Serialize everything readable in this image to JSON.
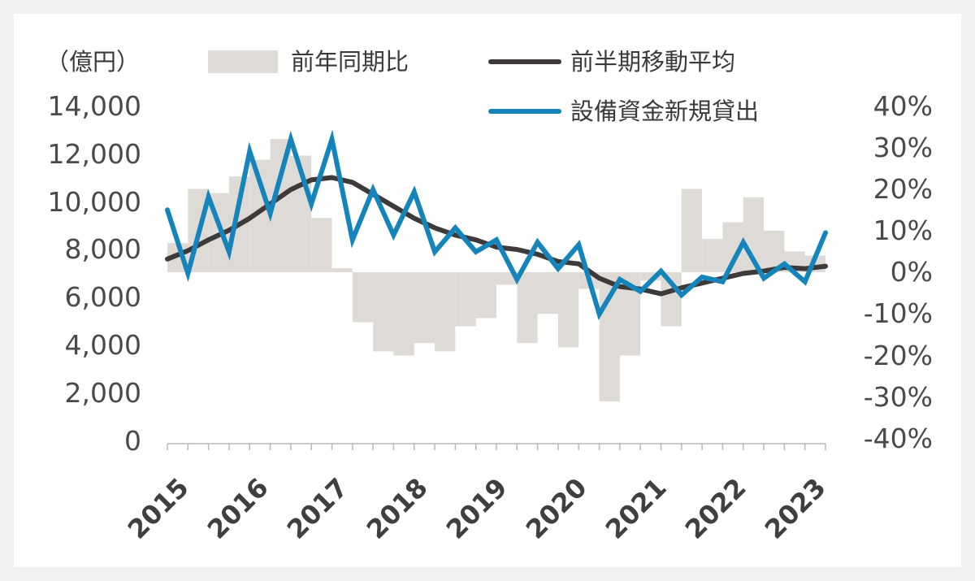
{
  "chart_data": {
    "type": "bar+line",
    "unit_label": "（億円）",
    "x_tick_labels": [
      "2015",
      "2016",
      "2017",
      "2018",
      "2019",
      "2020",
      "2021",
      "2022",
      "2023"
    ],
    "left_axis": {
      "ticks": [
        "14,000",
        "12,000",
        "10,000",
        "8,000",
        "6,000",
        "4,000",
        "2,000",
        "0"
      ],
      "ylim": [
        0,
        14000
      ]
    },
    "right_axis": {
      "ticks": [
        "40%",
        "30%",
        "20%",
        "10%",
        "0%",
        "-10%",
        "-20%",
        "-30%",
        "-40%"
      ],
      "ylim": [
        -40,
        40
      ]
    },
    "legend": {
      "yoy": "前年同期比",
      "moving_avg": "前半期移動平均",
      "loans": "設備資金新規貸出"
    },
    "x_index_range": [
      0,
      32
    ],
    "series": [
      {
        "name": "前年同期比",
        "type": "bar",
        "axis": "right",
        "color": "#dedbd6",
        "values": [
          7,
          20,
          19,
          23,
          27,
          32,
          28,
          13,
          1,
          -12,
          -19,
          -20,
          -17,
          -19,
          -13,
          -11,
          -3,
          -17,
          -10,
          -18,
          -4,
          -31,
          -20,
          -2,
          -13,
          20,
          8,
          12,
          18,
          10,
          5,
          4
        ]
      },
      {
        "name": "前半期移動平均",
        "type": "line",
        "axis": "left",
        "color": "#3d3a39",
        "values": [
          7600,
          7950,
          8400,
          8800,
          9300,
          9900,
          10500,
          10900,
          11000,
          10800,
          10300,
          9800,
          9300,
          8900,
          8600,
          8400,
          8100,
          8000,
          7800,
          7500,
          7400,
          6800,
          6450,
          6350,
          6150,
          6400,
          6600,
          6800,
          7000,
          7100,
          7250,
          7200,
          7300
        ]
      },
      {
        "name": "設備資金新規貸出",
        "type": "line",
        "axis": "left",
        "color": "#1584bb",
        "values": [
          9650,
          7000,
          10200,
          7900,
          12100,
          9500,
          12600,
          9900,
          12600,
          8400,
          10500,
          8600,
          10400,
          7900,
          8900,
          7900,
          8400,
          6750,
          8300,
          7200,
          8200,
          5300,
          6750,
          6250,
          7100,
          6100,
          6850,
          6650,
          8300,
          6800,
          7400,
          6650,
          8700
        ]
      }
    ]
  }
}
